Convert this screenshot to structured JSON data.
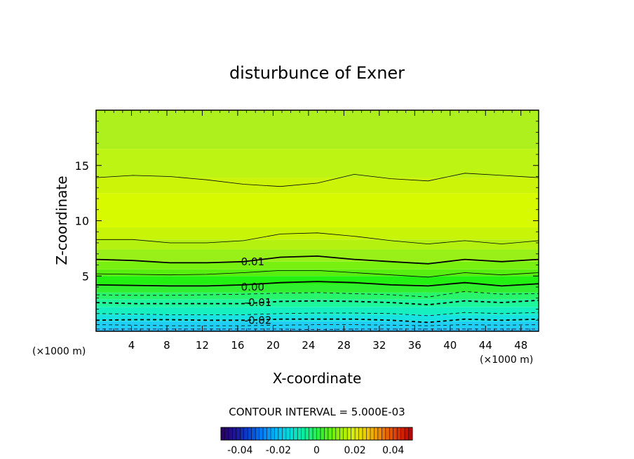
{
  "chart_data": {
    "type": "heatmap",
    "title": "disturbunce of Exner",
    "xlabel": "X-coordinate",
    "ylabel": "Z-coordinate",
    "x_unit_left": "(×1000 m)",
    "x_unit_right": "(×1000 m)",
    "xlim": [
      0,
      50
    ],
    "ylim": [
      0,
      20
    ],
    "x_ticks": [
      4,
      8,
      12,
      16,
      20,
      24,
      28,
      32,
      36,
      40,
      44,
      48
    ],
    "y_ticks": [
      5,
      10,
      15
    ],
    "contour_interval_text": "CONTOUR INTERVAL = 5.000E-03",
    "contour_interval": 0.005,
    "contour_labels": [
      {
        "text": "0.01",
        "x": 17.7,
        "z": 6.3
      },
      {
        "text": "0.00",
        "x": 17.7,
        "z": 4.0
      },
      {
        "text": "-0.01",
        "x": 18.3,
        "z": 2.6
      },
      {
        "text": "-0.02",
        "x": 18.3,
        "z": 1.0
      }
    ],
    "colorbar": {
      "range": [
        -0.05,
        0.05
      ],
      "tick_labels": [
        "-0.04",
        "-0.02",
        "0",
        "0.02",
        "0.04"
      ],
      "tick_values": [
        -0.04,
        -0.02,
        0,
        0.02,
        0.04
      ],
      "colors": [
        "#2a0070",
        "#1a1aa0",
        "#0050e0",
        "#0090ff",
        "#00c8f0",
        "#00e8c8",
        "#10f080",
        "#40f020",
        "#90f000",
        "#d8f000",
        "#f0c800",
        "#f08000",
        "#e03c00",
        "#c00000"
      ]
    },
    "field_bands": [
      {
        "z0": 0.0,
        "z1": 0.25,
        "value": -0.03,
        "color": "#2fbfff"
      },
      {
        "z0": 0.25,
        "z1": 0.9,
        "value": -0.025,
        "color": "#1fd0f4"
      },
      {
        "z0": 0.9,
        "z1": 1.5,
        "value": -0.02,
        "color": "#17e4e0"
      },
      {
        "z0": 1.5,
        "z1": 2.2,
        "value": -0.015,
        "color": "#16f0c0"
      },
      {
        "z0": 2.2,
        "z1": 2.9,
        "value": -0.01,
        "color": "#1ef69c"
      },
      {
        "z0": 2.9,
        "z1": 3.5,
        "value": -0.005,
        "color": "#28f56a"
      },
      {
        "z0": 3.5,
        "z1": 4.2,
        "value": 0.0,
        "color": "#30ee30"
      },
      {
        "z0": 4.2,
        "z1": 5.0,
        "value": 0.003,
        "color": "#22f010"
      },
      {
        "z0": 5.0,
        "z1": 5.6,
        "value": 0.005,
        "color": "#58ee10"
      },
      {
        "z0": 5.6,
        "z1": 6.3,
        "value": 0.008,
        "color": "#78f010"
      },
      {
        "z0": 6.3,
        "z1": 7.4,
        "value": 0.01,
        "color": "#98f018"
      },
      {
        "z0": 7.4,
        "z1": 8.3,
        "value": 0.013,
        "color": "#b4f010"
      },
      {
        "z0": 8.3,
        "z1": 9.4,
        "value": 0.015,
        "color": "#c8f408"
      },
      {
        "z0": 9.4,
        "z1": 12.5,
        "value": 0.017,
        "color": "#d8fa00"
      },
      {
        "z0": 12.5,
        "z1": 13.9,
        "value": 0.015,
        "color": "#ccf408"
      },
      {
        "z0": 13.9,
        "z1": 16.5,
        "value": 0.013,
        "color": "#bef414"
      },
      {
        "z0": 16.5,
        "z1": 20.0,
        "value": 0.011,
        "color": "#aef01e"
      }
    ],
    "contour_lines": [
      {
        "level": -0.025,
        "style": "dashed",
        "weight": "thin",
        "z": [
          0.2,
          0.2,
          0.2,
          0.2,
          0.2,
          0.2,
          0.15,
          0.2,
          0.2,
          0.2,
          0.2,
          0.2,
          0.2
        ]
      },
      {
        "level": -0.02,
        "style": "dashed",
        "weight": "thin",
        "z": [
          0.6,
          0.55,
          0.5,
          0.5,
          0.5,
          0.55,
          0.6,
          0.6,
          0.55,
          0.5,
          0.6,
          0.55,
          0.6
        ]
      },
      {
        "level": -0.02,
        "style": "dashed",
        "weight": "bold",
        "z": [
          1.0,
          1.05,
          1.05,
          1.0,
          1.0,
          1.1,
          1.1,
          1.1,
          1.0,
          0.8,
          1.1,
          1.0,
          1.1
        ]
      },
      {
        "level": -0.015,
        "style": "dashed",
        "weight": "thin",
        "z": [
          1.6,
          1.55,
          1.5,
          1.5,
          1.5,
          1.6,
          1.65,
          1.65,
          1.6,
          1.4,
          1.7,
          1.6,
          1.7
        ]
      },
      {
        "level": -0.01,
        "style": "dashed",
        "weight": "bold",
        "z": [
          2.6,
          2.5,
          2.5,
          2.5,
          2.5,
          2.7,
          2.75,
          2.7,
          2.6,
          2.4,
          2.75,
          2.6,
          2.8
        ]
      },
      {
        "level": -0.005,
        "style": "dashed",
        "weight": "thin",
        "z": [
          3.3,
          3.25,
          3.25,
          3.3,
          3.35,
          3.45,
          3.5,
          3.4,
          3.3,
          3.1,
          3.6,
          3.35,
          3.4
        ]
      },
      {
        "level": 0.0,
        "style": "solid",
        "weight": "bold",
        "z": [
          4.2,
          4.15,
          4.1,
          4.1,
          4.2,
          4.4,
          4.5,
          4.4,
          4.2,
          4.1,
          4.4,
          4.1,
          4.3
        ]
      },
      {
        "level": 0.005,
        "style": "solid",
        "weight": "thin",
        "z": [
          5.2,
          5.15,
          5.1,
          5.15,
          5.3,
          5.5,
          5.5,
          5.3,
          5.1,
          4.9,
          5.3,
          5.1,
          5.3
        ]
      },
      {
        "level": 0.01,
        "style": "solid",
        "weight": "bold",
        "z": [
          6.5,
          6.4,
          6.2,
          6.2,
          6.3,
          6.7,
          6.8,
          6.5,
          6.3,
          6.1,
          6.5,
          6.3,
          6.5
        ]
      },
      {
        "level": 0.015,
        "style": "solid",
        "weight": "thin",
        "z": [
          8.3,
          8.3,
          8.0,
          8.0,
          8.2,
          8.8,
          8.9,
          8.6,
          8.2,
          7.9,
          8.2,
          7.9,
          8.2
        ]
      },
      {
        "level": 0.015,
        "style": "solid",
        "weight": "thin",
        "z": [
          13.9,
          14.1,
          14.0,
          13.7,
          13.3,
          13.1,
          13.4,
          14.2,
          13.8,
          13.6,
          14.3,
          14.1,
          13.9
        ]
      }
    ]
  }
}
